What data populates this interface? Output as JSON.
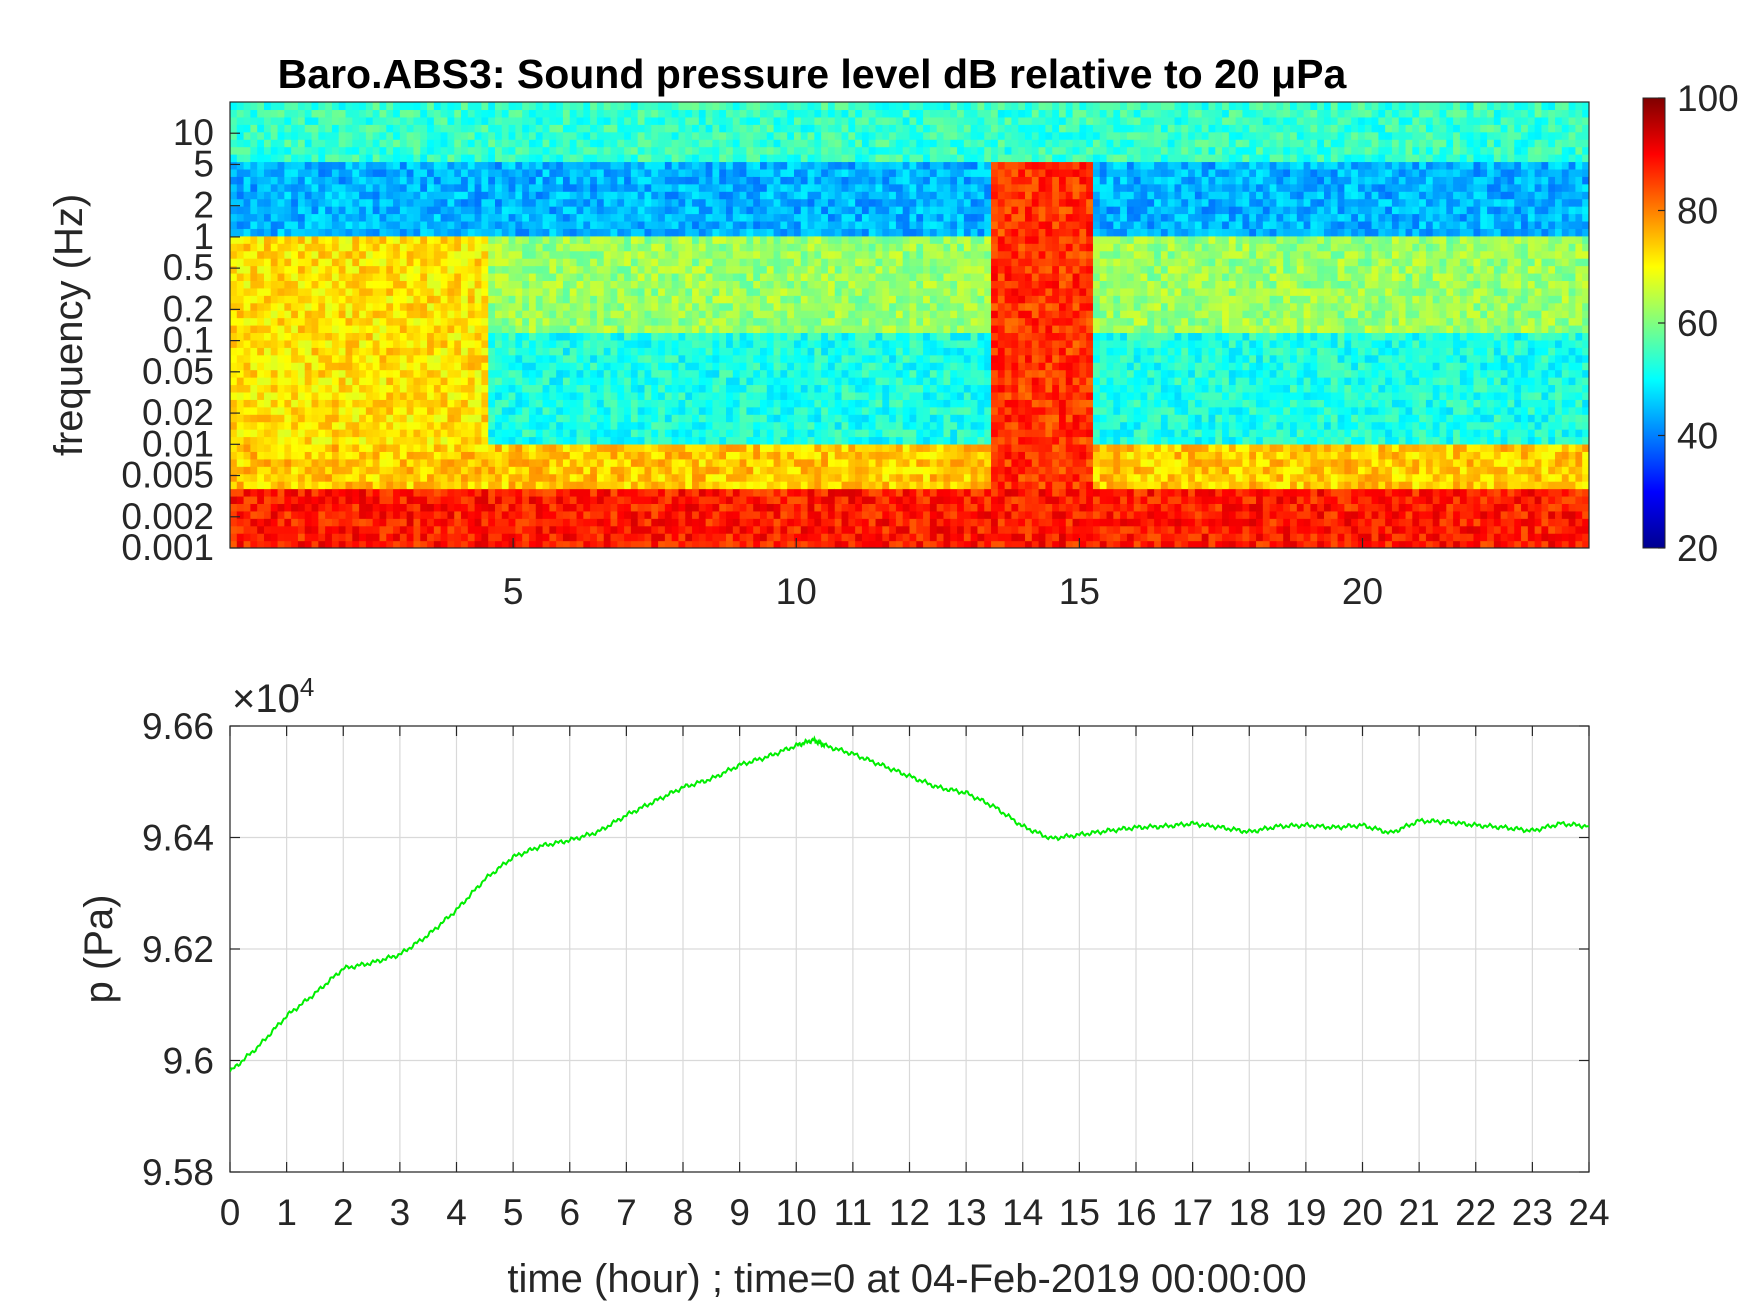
{
  "chart_data": [
    {
      "type": "heatmap",
      "title": "Baro.ABS3: Sound pressure level dB relative to 20 μPa",
      "xlabel": "",
      "ylabel": "frequency (Hz)",
      "xlim": [
        0,
        24
      ],
      "ylim": [
        0.001,
        20
      ],
      "yscale": "log",
      "x_ticks": [
        "5",
        "10",
        "15",
        "20"
      ],
      "y_ticks": [
        "0.001",
        "0.002",
        "0.005",
        "0.01",
        "0.02",
        "0.05",
        "0.1",
        "0.2",
        "0.5",
        "1",
        "2",
        "5",
        "10"
      ],
      "colormap": "jet",
      "colorbar": {
        "ticks": [
          "20",
          "40",
          "60",
          "80",
          "100"
        ],
        "range": [
          20,
          100
        ]
      },
      "bands": [
        {
          "f_range": [
            5,
            20
          ],
          "level_db": 54
        },
        {
          "f_range": [
            1,
            5
          ],
          "level_db": 44
        },
        {
          "f_range": [
            0.12,
            1
          ],
          "level_db": 62
        },
        {
          "f_range": [
            0.01,
            0.12
          ],
          "level_db": 52
        },
        {
          "f_range": [
            0.004,
            0.01
          ],
          "level_db": 74
        },
        {
          "f_range": [
            0.001,
            0.004
          ],
          "level_db": 88
        }
      ],
      "events": [
        {
          "t_range": [
            0,
            4.5
          ],
          "f_max": 1,
          "level_db": 72,
          "label": ""
        },
        {
          "t_range": [
            13.5,
            15.2
          ],
          "f_max": 5,
          "level_db": 86,
          "label": ""
        }
      ]
    },
    {
      "type": "line",
      "title": "",
      "xlabel": "time (hour) ; time=0 at 04-Feb-2019 00:00:00",
      "ylabel": "p (Pa)",
      "exponent_label": "×10",
      "exponent_power": "4",
      "xlim": [
        0,
        24
      ],
      "ylim": [
        95800,
        96600
      ],
      "x_ticks": [
        "0",
        "1",
        "2",
        "3",
        "4",
        "5",
        "6",
        "7",
        "8",
        "9",
        "10",
        "11",
        "12",
        "13",
        "14",
        "15",
        "16",
        "17",
        "18",
        "19",
        "20",
        "21",
        "22",
        "23",
        "24"
      ],
      "y_ticks": [
        "9.58",
        "9.6",
        "9.62",
        "9.64",
        "9.66"
      ],
      "grid": true,
      "line_color": "#00ee00",
      "x": [
        0,
        0.5,
        1,
        1.5,
        2,
        2.5,
        3,
        3.5,
        4,
        4.5,
        5,
        5.5,
        6,
        6.5,
        7,
        7.5,
        8,
        8.5,
        9,
        9.5,
        10,
        10.3,
        10.5,
        11,
        11.5,
        12,
        12.5,
        13,
        13.5,
        14,
        14.5,
        15,
        15.5,
        16,
        16.5,
        17,
        17.5,
        18,
        18.5,
        19,
        19.5,
        20,
        20.5,
        21,
        21.5,
        22,
        22.5,
        23,
        23.5,
        24
      ],
      "y": [
        95980,
        96025,
        96080,
        96120,
        96165,
        96175,
        96190,
        96225,
        96270,
        96325,
        96365,
        96385,
        96395,
        96410,
        96440,
        96465,
        96490,
        96505,
        96530,
        96545,
        96565,
        96575,
        96565,
        96550,
        96530,
        96510,
        96490,
        96480,
        96455,
        96420,
        96398,
        96405,
        96412,
        96418,
        96420,
        96425,
        96418,
        96410,
        96420,
        96422,
        96418,
        96422,
        96408,
        96430,
        96428,
        96422,
        96418,
        96412,
        96425,
        96420
      ]
    }
  ]
}
